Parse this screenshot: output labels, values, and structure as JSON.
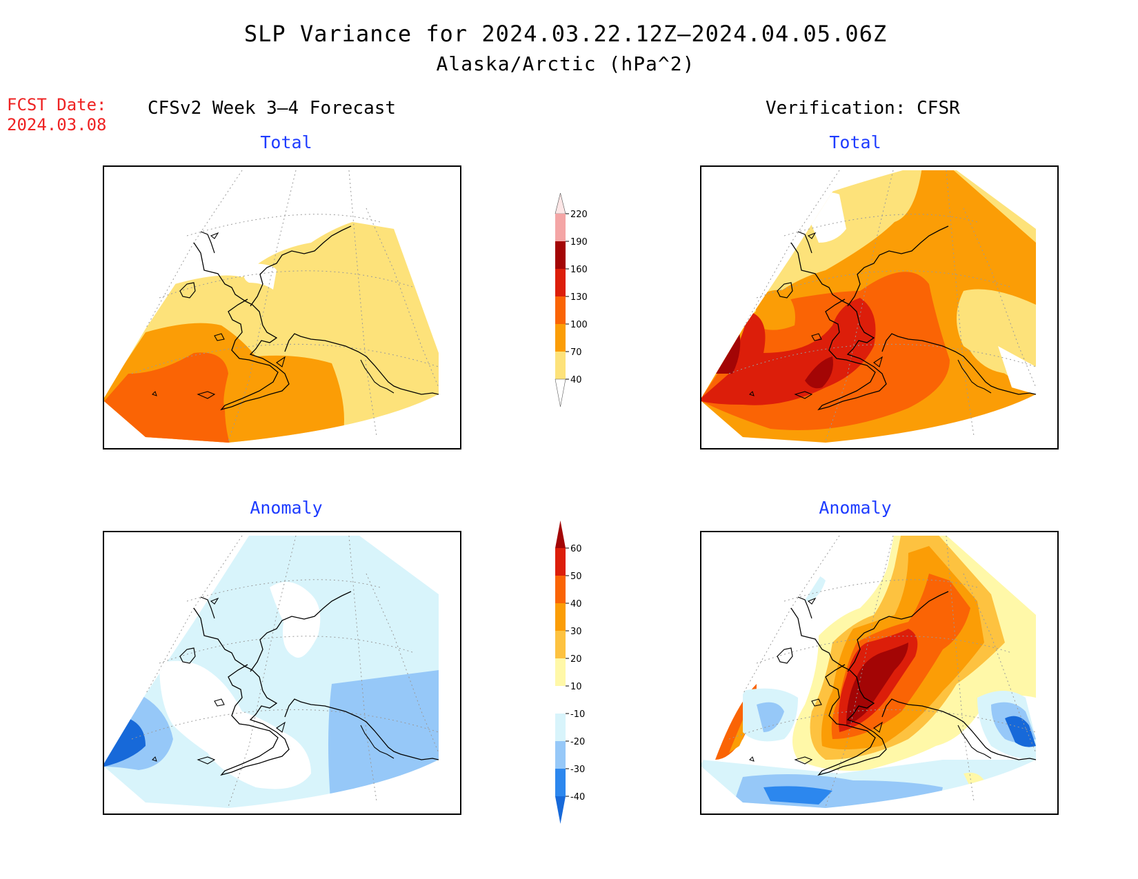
{
  "header": {
    "title": "SLP Variance for 2024.03.22.12Z–2024.04.05.06Z",
    "subtitle": "Alaska/Arctic (hPa^2)",
    "fcst_label": "FCST Date:",
    "fcst_date": "2024.03.08",
    "left_column": "CFSv2 Week 3–4 Forecast",
    "right_column": "Verification: CFSR"
  },
  "panels": {
    "forecast_total": {
      "title": "Total"
    },
    "verif_total": {
      "title": "Total"
    },
    "forecast_anomaly": {
      "title": "Anomaly"
    },
    "verif_anomaly": {
      "title": "Anomaly"
    }
  },
  "colorbar_total": {
    "levels": [
      "40",
      "70",
      "100",
      "130",
      "160",
      "190",
      "220"
    ],
    "colors": [
      "#fde27a",
      "#fb9d06",
      "#fa6405",
      "#dc1e0a",
      "#a30505",
      "#f4a5a5",
      "#fde6e6"
    ],
    "below_color": "#ffffff"
  },
  "colorbar_anomaly": {
    "levels": [
      "-40",
      "-30",
      "-20",
      "-10",
      "10",
      "20",
      "30",
      "40",
      "50",
      "60"
    ],
    "colors": [
      "#1769d9",
      "#2c87ee",
      "#96c8f8",
      "#d8f4fb",
      "#ffffff",
      "#fff8a8",
      "#fdc240",
      "#fb9d06",
      "#fa6405",
      "#dc1e0a",
      "#a30505"
    ]
  }
}
